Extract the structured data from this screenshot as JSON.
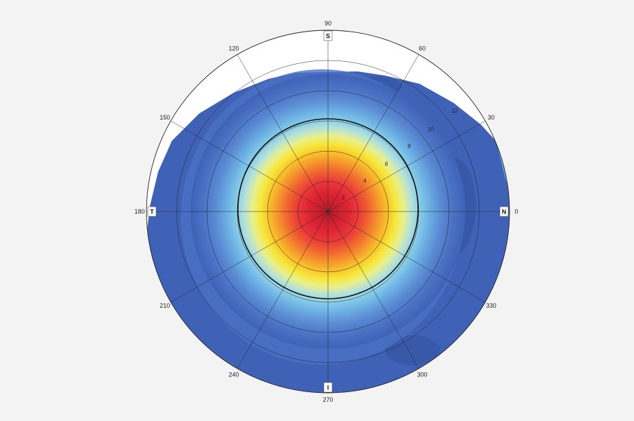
{
  "polar": {
    "angle_labels": [
      {
        "angle": 0,
        "text": "0"
      },
      {
        "angle": 30,
        "text": "30"
      },
      {
        "angle": 60,
        "text": "60"
      },
      {
        "angle": 90,
        "text": "90"
      },
      {
        "angle": 120,
        "text": "120"
      },
      {
        "angle": 150,
        "text": "150"
      },
      {
        "angle": 180,
        "text": "180"
      },
      {
        "angle": 210,
        "text": "210"
      },
      {
        "angle": 240,
        "text": "240"
      },
      {
        "angle": 270,
        "text": "270"
      },
      {
        "angle": 300,
        "text": "300"
      },
      {
        "angle": 330,
        "text": "330"
      }
    ],
    "ring_labels": [
      "2",
      "4",
      "6",
      "8",
      "10",
      "12"
    ],
    "directions": [
      {
        "key": "S",
        "text": "S",
        "angle": 90
      },
      {
        "key": "N",
        "text": "N",
        "angle": 0
      },
      {
        "key": "T",
        "text": "T",
        "angle": 180
      },
      {
        "key": "I",
        "text": "I",
        "angle": 270
      }
    ],
    "colors": {
      "background": "#ffffff",
      "grid": "#222222",
      "rim": "#3f62b6",
      "scale": [
        "#3f62b6",
        "#4a72c4",
        "#5b8bd3",
        "#6aaee3",
        "#86cbe9",
        "#b5e2d8",
        "#e9f08a",
        "#f7e63a",
        "#f9c02a",
        "#f6962e",
        "#f0662f",
        "#e9383a",
        "#dc2433",
        "#c81e2c",
        "#a6222b"
      ]
    }
  }
}
